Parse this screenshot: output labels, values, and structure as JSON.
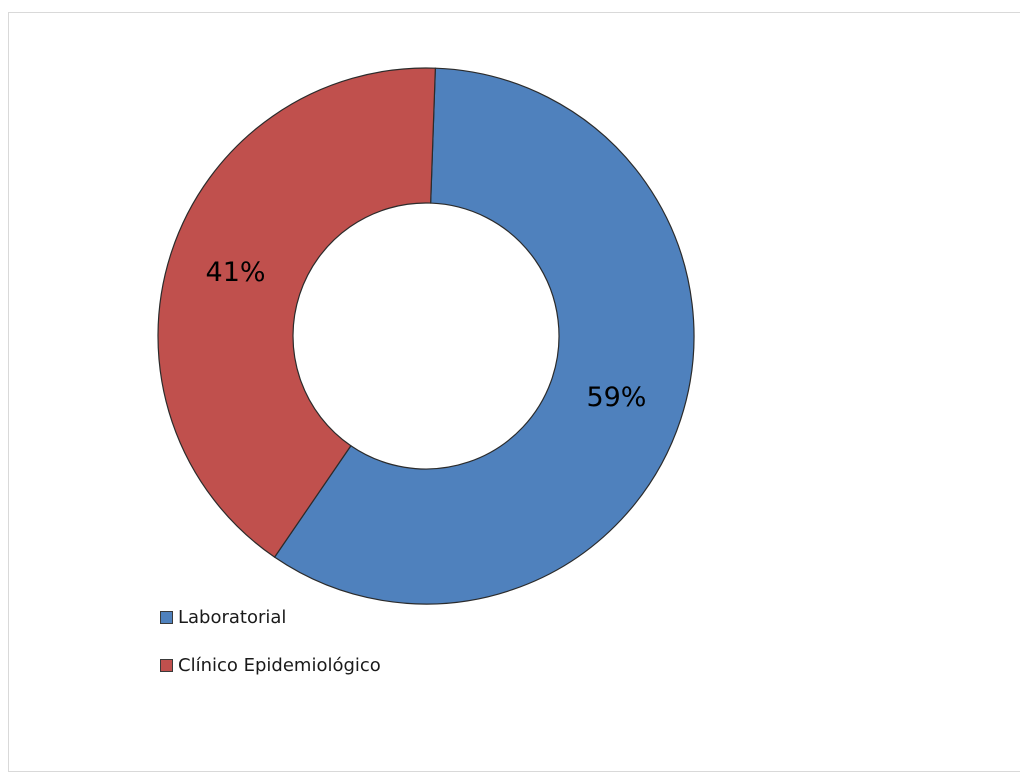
{
  "chart_data": {
    "type": "pie",
    "variant": "donut",
    "categories": [
      "Laboratorial",
      "Clínico Epidemiológico"
    ],
    "values": [
      59,
      41
    ],
    "data_labels": [
      "59%",
      "41%"
    ],
    "colors": [
      "#4f81bd",
      "#c0504d"
    ],
    "title": "",
    "legend_position": "bottom-left"
  }
}
